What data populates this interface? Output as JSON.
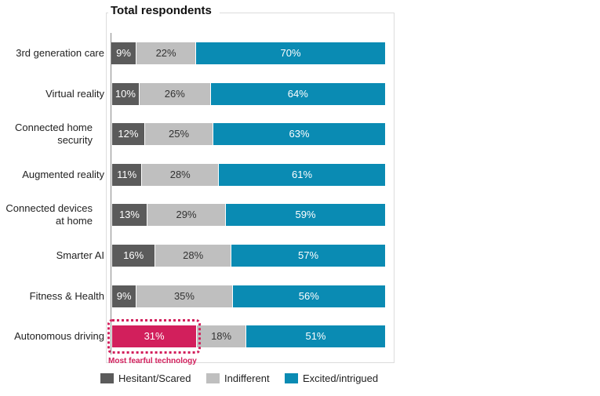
{
  "chart_data": {
    "type": "bar",
    "orientation": "horizontal",
    "stacked": true,
    "title": "Total respondents",
    "categories": [
      "3rd generation care",
      "Virtual reality",
      "Connected home security",
      "Augmented reality",
      "Connected devices at home",
      "Smarter AI",
      "Fitness & Health",
      "Autonomous driving"
    ],
    "series": [
      {
        "name": "Hesitant/Scared",
        "color": "#5b5b5b",
        "values": [
          9,
          10,
          12,
          11,
          13,
          16,
          9,
          31
        ]
      },
      {
        "name": "Indifferent",
        "color": "#bfbfbf",
        "values": [
          22,
          26,
          25,
          28,
          29,
          28,
          35,
          18
        ]
      },
      {
        "name": "Excited/intrigued",
        "color": "#0a8bb3",
        "values": [
          70,
          64,
          63,
          61,
          59,
          57,
          56,
          51
        ]
      }
    ],
    "value_suffix": "%",
    "highlight": {
      "category": "Autonomous driving",
      "series": "Hesitant/Scared",
      "color": "#d21f5c",
      "annotation": "Most fearful technology"
    },
    "legend_position": "bottom",
    "grid": false
  }
}
